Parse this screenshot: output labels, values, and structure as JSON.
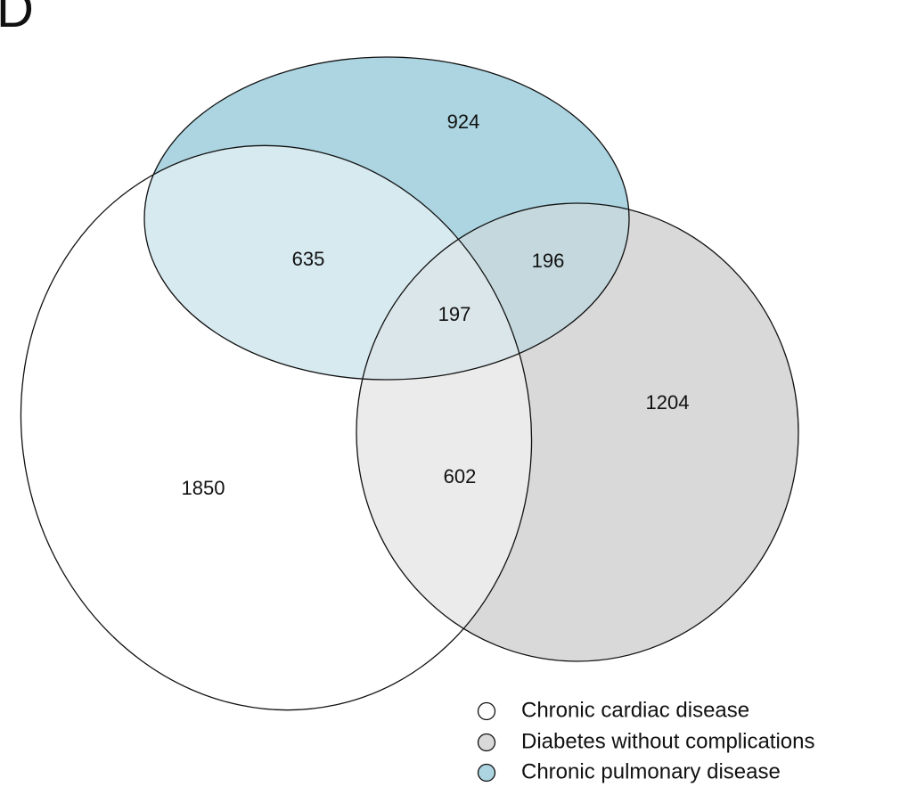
{
  "panel_label": "D",
  "sets": [
    {
      "id": "cardiac",
      "name": "Chronic cardiac disease",
      "color": "#ffffff"
    },
    {
      "id": "diabetes",
      "name": "Diabetes without complications",
      "color": "#d9d9d9"
    },
    {
      "id": "pulmonary",
      "name": "Chronic pulmonary disease",
      "color": "#acd5e1"
    }
  ],
  "regions": {
    "pulmonary_only": "924",
    "cardiac_pulmonary": "635",
    "pulmonary_diabetes": "196",
    "all_three": "197",
    "diabetes_only": "1204",
    "cardiac_diabetes": "602",
    "cardiac_only": "1850"
  },
  "legend": [
    {
      "label": "Chronic cardiac disease",
      "color": "#ffffff"
    },
    {
      "label": "Diabetes without complications",
      "color": "#d9d9d9"
    },
    {
      "label": "Chronic pulmonary disease",
      "color": "#acd5e1"
    }
  ]
}
